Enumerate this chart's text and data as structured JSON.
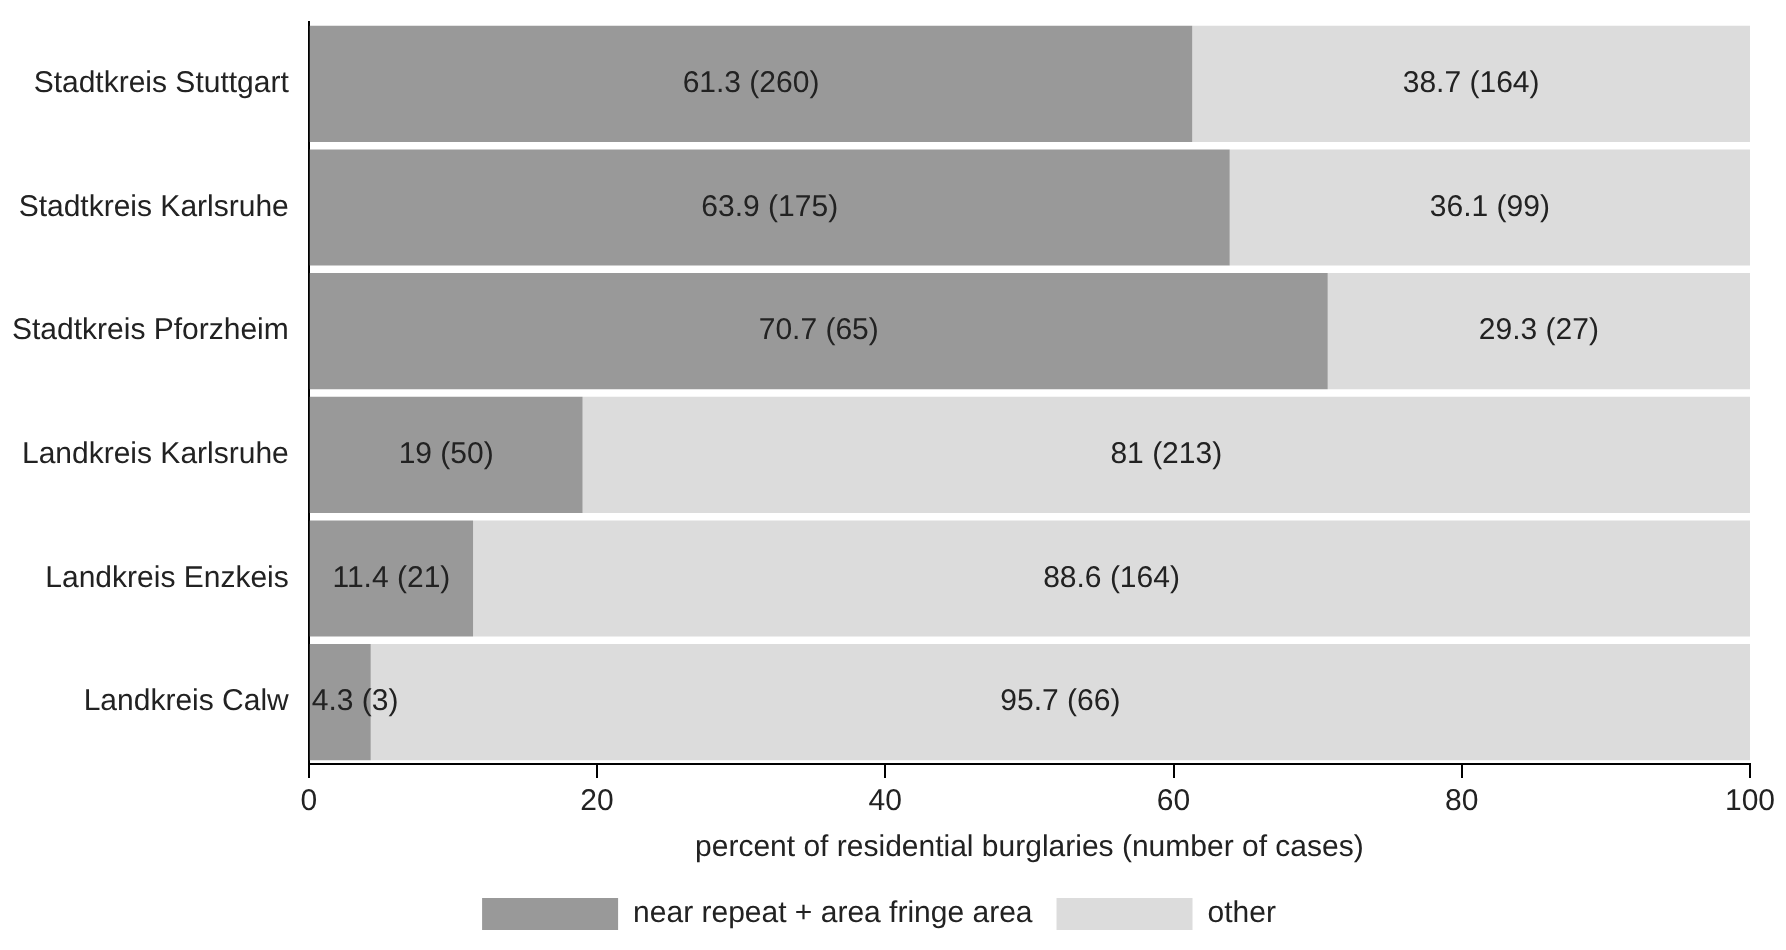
{
  "chart_data": {
    "type": "bar",
    "orientation": "horizontal",
    "stacked": true,
    "categories": [
      "Stadtkreis Stuttgart",
      "Stadtkreis Karlsruhe",
      "Stadtkreis Pforzheim",
      "Landkreis Karlsruhe",
      "Landkreis Enzkeis",
      "Landkreis Calw"
    ],
    "series": [
      {
        "name": "near repeat + area fringe area",
        "color": "#999999",
        "values": [
          61.3,
          63.9,
          70.7,
          19,
          11.4,
          4.3
        ],
        "value_labels": [
          "61.3 (260)",
          "63.9 (175)",
          "70.7 (65)",
          "19 (50)",
          "11.4 (21)",
          "4.3 (3)"
        ]
      },
      {
        "name": "other",
        "color": "#dcdcdc",
        "values": [
          38.7,
          36.1,
          29.3,
          81,
          88.6,
          95.7
        ],
        "value_labels": [
          "38.7 (164)",
          "36.1 (99)",
          "29.3 (27)",
          "81 (213)",
          "88.6 (164)",
          "95.7 (66)"
        ]
      }
    ],
    "xlabel": "percent of residential burglaries (number of cases)",
    "xlim": [
      0,
      100
    ],
    "xticks": [
      0,
      20,
      40,
      60,
      80,
      100
    ],
    "legend": "bottom"
  }
}
